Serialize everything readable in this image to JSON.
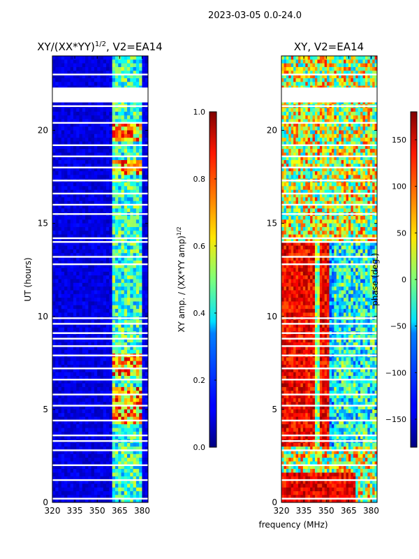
{
  "figure": {
    "suptitle": "2023-03-05 0.0-24.0",
    "xlabel": "frequency (MHz)"
  },
  "chart_data": [
    {
      "type": "heatmap",
      "title_base": "XY/(XX*YY)",
      "title_exp": "1/2",
      "title_suffix": ", V2=EA14",
      "xlabel": "",
      "ylabel": "UT (hours)",
      "xlim": [
        320,
        384
      ],
      "ylim": [
        0,
        24
      ],
      "xticks": [
        320,
        335,
        350,
        365,
        380
      ],
      "yticks": [
        0,
        5,
        10,
        15,
        20
      ],
      "colorbar": {
        "label": "XY amp. / (XX*YY amp)",
        "label_exp": "1/2",
        "range": [
          0.0,
          1.0
        ],
        "ticks": [
          "0.0",
          "0.2",
          "0.4",
          "0.6",
          "0.8",
          "1.0"
        ]
      },
      "gap_rows_ut": [
        0.2,
        1.2,
        2.0,
        2.8,
        3.3,
        3.6,
        4.4,
        5.2,
        5.8,
        6.6,
        7.2,
        7.9,
        8.4,
        8.8,
        9.1,
        9.6,
        9.9,
        12.8,
        13.2,
        14.0,
        14.2,
        15.5,
        16.0,
        16.6,
        17.3,
        18.0,
        18.6,
        19.2,
        20.4,
        21.3,
        21.6,
        22.2,
        23.0
      ],
      "bright_band_MHz": [
        360,
        379
      ]
    },
    {
      "type": "heatmap",
      "title": "XY, V2=EA14",
      "xlabel": "frequency (MHz)",
      "ylabel": "",
      "xlim": [
        320,
        384
      ],
      "ylim": [
        0,
        24
      ],
      "xticks": [
        320,
        335,
        350,
        365,
        380
      ],
      "yticks": [
        0,
        5,
        10,
        15,
        20
      ],
      "colorbar": {
        "label": "phase (deg.)",
        "range": [
          -180,
          180
        ],
        "ticks": [
          "−150",
          "−100",
          "−50",
          "0",
          "50",
          "100",
          "150"
        ]
      },
      "gap_rows_ut": [
        0.2,
        1.2,
        2.0,
        2.8,
        3.3,
        3.6,
        4.4,
        5.2,
        5.8,
        6.6,
        7.2,
        7.9,
        8.4,
        8.8,
        9.1,
        9.6,
        9.9,
        12.8,
        13.2,
        14.0,
        14.2,
        15.5,
        16.0,
        16.6,
        17.3,
        18.0,
        18.6,
        19.2,
        20.4,
        21.3,
        21.6,
        22.2,
        23.0
      ]
    }
  ]
}
